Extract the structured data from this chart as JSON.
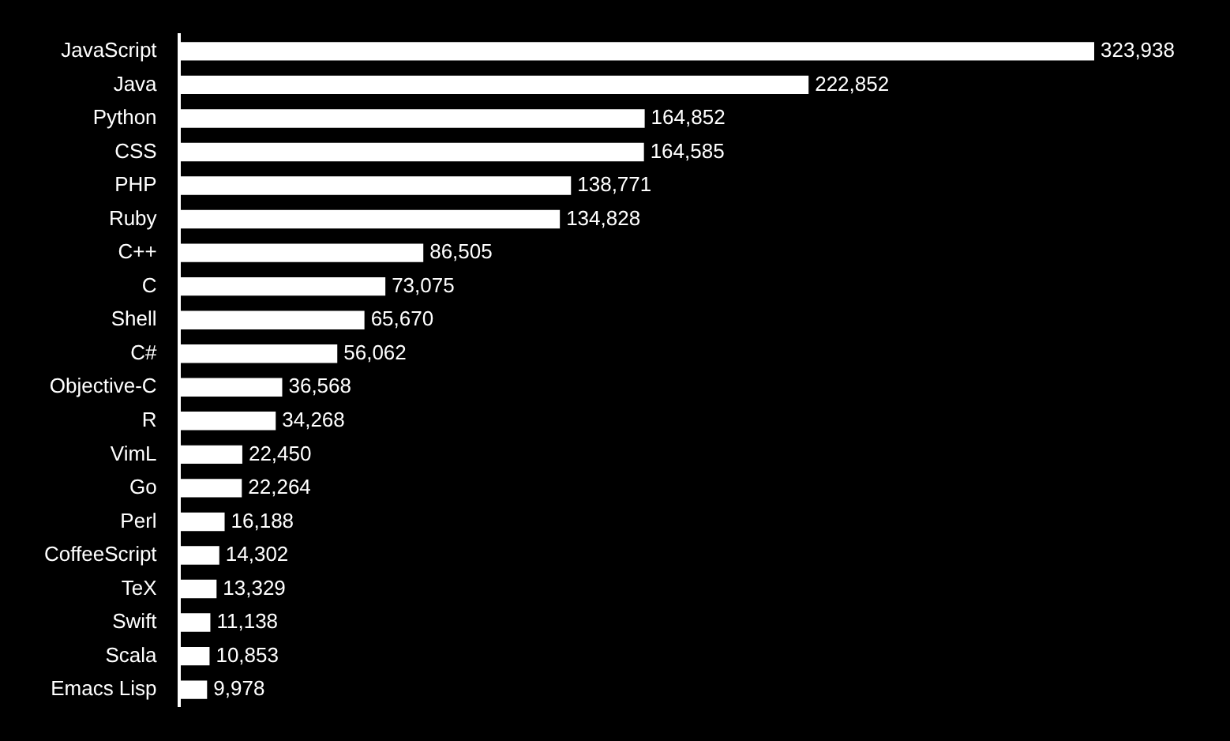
{
  "chart_data": {
    "type": "bar",
    "orientation": "horizontal",
    "categories": [
      "JavaScript",
      "Java",
      "Python",
      "CSS",
      "PHP",
      "Ruby",
      "C++",
      "C",
      "Shell",
      "C#",
      "Objective-C",
      "R",
      "VimL",
      "Go",
      "Perl",
      "CoffeeScript",
      "TeX",
      "Swift",
      "Scala",
      "Emacs Lisp"
    ],
    "values": [
      323938,
      222852,
      164852,
      164585,
      138771,
      134828,
      86505,
      73075,
      65670,
      56062,
      36568,
      34268,
      22450,
      22264,
      16188,
      14302,
      13329,
      11138,
      10853,
      9978
    ],
    "value_labels": [
      "323,938",
      "222,852",
      "164,852",
      "164,585",
      "138,771",
      "134,828",
      "86,505",
      "73,075",
      "65,670",
      "56,062",
      "36,568",
      "34,268",
      "22,450",
      "22,264",
      "16,188",
      "14,302",
      "13,329",
      "11,138",
      "10,853",
      "9,978"
    ],
    "color": "#ffffff"
  }
}
